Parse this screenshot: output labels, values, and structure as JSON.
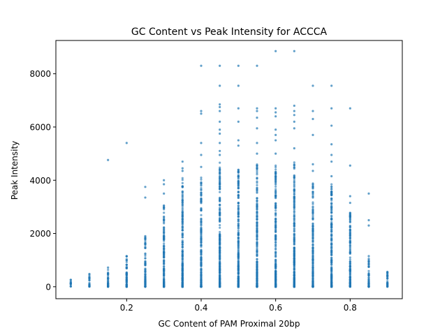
{
  "chart_data": {
    "type": "scatter",
    "title": "GC Content vs Peak Intensity for ACCCA",
    "xlabel": "GC Content of PAM Proximal 20bp",
    "ylabel": "Peak Intensity",
    "xlim": [
      0.01,
      0.94
    ],
    "ylim": [
      -450,
      9250
    ],
    "xticks": [
      0.2,
      0.4,
      0.6,
      0.8
    ],
    "xtick_labels": [
      "0.2",
      "0.4",
      "0.6",
      "0.8"
    ],
    "yticks": [
      0,
      2000,
      4000,
      6000,
      8000
    ],
    "ytick_labels": [
      "0",
      "2000",
      "4000",
      "6000",
      "8000"
    ],
    "grid": false,
    "color": "#1f77b4",
    "columns": [
      {
        "x": 0.05,
        "max": 260,
        "outliers": [
          260
        ]
      },
      {
        "x": 0.1,
        "max": 480,
        "outliers": [
          480,
          320,
          240
        ]
      },
      {
        "x": 0.15,
        "max": 720,
        "outliers": [
          4760,
          720,
          480,
          300,
          40
        ]
      },
      {
        "x": 0.2,
        "max": 1150,
        "outliers": [
          5400,
          1150,
          1000
        ]
      },
      {
        "x": 0.25,
        "max": 1900,
        "outliers": [
          3750,
          3350,
          1900,
          1820,
          1600
        ]
      },
      {
        "x": 0.3,
        "max": 3100,
        "outliers": [
          4000,
          3850,
          3500
        ]
      },
      {
        "x": 0.35,
        "max": 4100,
        "outliers": [
          4700,
          4450,
          4350
        ]
      },
      {
        "x": 0.4,
        "max": 4200,
        "outliers": [
          8300,
          6600,
          6500,
          5400,
          4950,
          4500
        ]
      },
      {
        "x": 0.45,
        "max": 4700,
        "outliers": [
          8300,
          7550,
          6850,
          6750,
          6600,
          6200,
          5900,
          5750,
          5400,
          5100,
          4950
        ]
      },
      {
        "x": 0.5,
        "max": 4700,
        "outliers": [
          8300,
          7550,
          6700,
          6200,
          5500,
          5300
        ]
      },
      {
        "x": 0.55,
        "max": 4600,
        "outliers": [
          8300,
          6700,
          6600,
          6350,
          5950,
          5400,
          5000
        ]
      },
      {
        "x": 0.6,
        "max": 4600,
        "outliers": [
          8850,
          6700,
          6550,
          6400,
          5900,
          5700,
          5500,
          5000
        ]
      },
      {
        "x": 0.65,
        "max": 4700,
        "outliers": [
          8850,
          6800,
          6600,
          6450,
          6200,
          5950,
          5200
        ]
      },
      {
        "x": 0.7,
        "max": 3900,
        "outliers": [
          7550,
          6600,
          6300,
          5700,
          4600,
          4350
        ]
      },
      {
        "x": 0.75,
        "max": 3850,
        "outliers": [
          7550,
          6700,
          6050,
          5350,
          4950,
          4700,
          4150
        ]
      },
      {
        "x": 0.8,
        "max": 2800,
        "outliers": [
          6700,
          4550,
          3400,
          3150,
          2750
        ]
      },
      {
        "x": 0.85,
        "max": 1200,
        "outliers": [
          3500,
          2500,
          2300,
          1150
        ]
      },
      {
        "x": 0.9,
        "max": 560,
        "outliers": [
          560,
          420,
          150
        ]
      }
    ]
  }
}
